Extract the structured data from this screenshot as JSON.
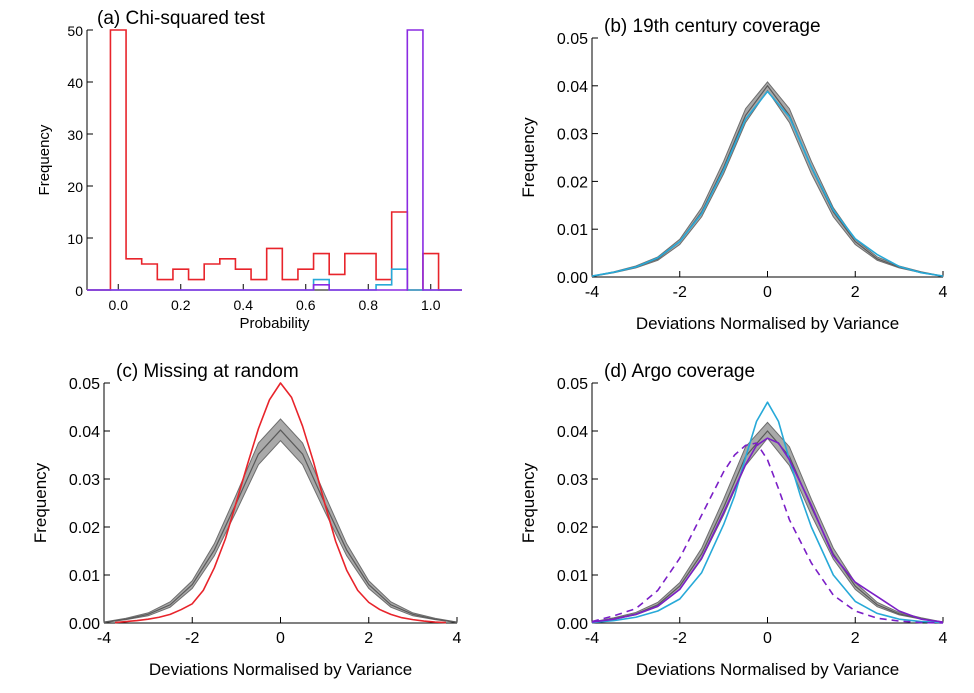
{
  "chart_data": [
    {
      "id": "a",
      "type": "histogram",
      "title": "(a) Chi-squared test",
      "xlabel": "Probability",
      "ylabel": "Frequency",
      "xlim": [
        -0.1,
        1.1
      ],
      "ylim": [
        0,
        50
      ],
      "xticks": [
        "0.0",
        "0.2",
        "0.4",
        "0.6",
        "0.8",
        "1.0"
      ],
      "yticks": [
        "0",
        "10",
        "20",
        "30",
        "40",
        "50"
      ],
      "bin_edges": [
        -0.025,
        0.025,
        0.075,
        0.125,
        0.175,
        0.225,
        0.275,
        0.325,
        0.375,
        0.425,
        0.475,
        0.525,
        0.575,
        0.625,
        0.675,
        0.725,
        0.775,
        0.825,
        0.875,
        0.925,
        0.975,
        1.025
      ],
      "series": [
        {
          "color": "#e8242b",
          "values": [
            50,
            6,
            5,
            2,
            4,
            2,
            5,
            6,
            4,
            2,
            8,
            2,
            4,
            7,
            3,
            7,
            7,
            2,
            15,
            0,
            7
          ]
        },
        {
          "color": "#27a9d8",
          "values": [
            0,
            0,
            0,
            0,
            0,
            0,
            0,
            0,
            0,
            0,
            0,
            0,
            0,
            2,
            0,
            0,
            0,
            1,
            4,
            0,
            0
          ]
        },
        {
          "color": "#8a2be2",
          "values": [
            0,
            0,
            0,
            0,
            0,
            0,
            0,
            0,
            0,
            0,
            0,
            0,
            0,
            1,
            0,
            0,
            0,
            0,
            0,
            50,
            0
          ]
        }
      ]
    },
    {
      "id": "b",
      "type": "line",
      "title": "(b) 19th century coverage",
      "xlabel": "Deviations Normalised by Variance",
      "ylabel": "Frequency",
      "xlim": [
        -4,
        4
      ],
      "ylim": [
        0,
        0.05
      ],
      "xticks": [
        "-4",
        "-2",
        "0",
        "2",
        "4"
      ],
      "yticks": [
        "0.00",
        "0.01",
        "0.02",
        "0.03",
        "0.04",
        "0.05"
      ],
      "band": {
        "color": "#808080",
        "x": [
          -4,
          -3.5,
          -3,
          -2.5,
          -2,
          -1.5,
          -1,
          -0.5,
          0,
          0.5,
          1,
          1.5,
          2,
          2.5,
          3,
          3.5,
          4
        ],
        "lower": [
          0.0001,
          0.0009,
          0.0019,
          0.0035,
          0.0068,
          0.0126,
          0.0216,
          0.0323,
          0.039,
          0.0323,
          0.0216,
          0.0126,
          0.0068,
          0.0035,
          0.0019,
          0.0009,
          0.0001
        ],
        "upper": [
          0.0002,
          0.0011,
          0.0023,
          0.0042,
          0.0079,
          0.0145,
          0.0242,
          0.0352,
          0.0408,
          0.0352,
          0.0242,
          0.0145,
          0.0079,
          0.0042,
          0.0023,
          0.0011,
          0.0002
        ],
        "center": [
          0.00015,
          0.001,
          0.0021,
          0.0038,
          0.0074,
          0.0136,
          0.0229,
          0.0338,
          0.04,
          0.0338,
          0.0229,
          0.0136,
          0.0074,
          0.0038,
          0.0021,
          0.001,
          0.00015
        ]
      },
      "series": [
        {
          "color": "#27a9d8",
          "dash": false,
          "x": [
            -4,
            -3.5,
            -3,
            -2.5,
            -2,
            -1.5,
            -1,
            -0.5,
            0,
            0.5,
            1,
            1.5,
            2,
            2.5,
            3,
            3.5,
            4
          ],
          "y": [
            0.0002,
            0.001,
            0.0021,
            0.004,
            0.0074,
            0.0133,
            0.0224,
            0.033,
            0.0388,
            0.0335,
            0.023,
            0.014,
            0.008,
            0.0047,
            0.0022,
            0.0009,
            0.0002
          ]
        }
      ]
    },
    {
      "id": "c",
      "type": "line",
      "title": "(c) Missing at random",
      "xlabel": "Deviations Normalised by Variance",
      "ylabel": "Frequency",
      "xlim": [
        -4,
        4
      ],
      "ylim": [
        0,
        0.05
      ],
      "xticks": [
        "-4",
        "-2",
        "0",
        "2",
        "4"
      ],
      "yticks": [
        "0.00",
        "0.01",
        "0.02",
        "0.03",
        "0.04",
        "0.05"
      ],
      "band": {
        "color": "#808080",
        "x": [
          -4,
          -3.5,
          -3,
          -2.5,
          -2,
          -1.5,
          -1,
          -0.5,
          0,
          0.5,
          1,
          1.5,
          2,
          2.5,
          3,
          3.5,
          4
        ],
        "lower": [
          0.0001,
          0.0007,
          0.0015,
          0.0033,
          0.0072,
          0.014,
          0.0233,
          0.033,
          0.038,
          0.033,
          0.0233,
          0.014,
          0.0072,
          0.0033,
          0.0015,
          0.0007,
          0.0001
        ],
        "upper": [
          0.0002,
          0.001,
          0.0021,
          0.0044,
          0.0088,
          0.0165,
          0.0268,
          0.0375,
          0.0425,
          0.0375,
          0.0268,
          0.0165,
          0.0088,
          0.0044,
          0.0021,
          0.001,
          0.0002
        ],
        "center": [
          0.00015,
          0.0008,
          0.0018,
          0.0038,
          0.008,
          0.0152,
          0.025,
          0.0352,
          0.0402,
          0.0352,
          0.025,
          0.0152,
          0.008,
          0.0038,
          0.0018,
          0.0008,
          0.00015
        ]
      },
      "series": [
        {
          "color": "#e8242b",
          "dash": false,
          "x": [
            -3.75,
            -3.5,
            -3.25,
            -3,
            -2.75,
            -2.5,
            -2.25,
            -2,
            -1.75,
            -1.5,
            -1.25,
            -1,
            -0.75,
            -0.5,
            -0.25,
            0,
            0.25,
            0.5,
            0.75,
            1,
            1.25,
            1.5,
            1.75,
            2,
            2.25,
            2.5,
            2.75,
            3,
            3.25,
            3.5,
            3.75
          ],
          "y": [
            0.0001,
            0.0003,
            0.0005,
            0.0008,
            0.0012,
            0.0018,
            0.0028,
            0.004,
            0.0068,
            0.0115,
            0.0175,
            0.0252,
            0.033,
            0.0405,
            0.0465,
            0.05,
            0.047,
            0.041,
            0.0335,
            0.025,
            0.017,
            0.011,
            0.0068,
            0.0043,
            0.0028,
            0.0018,
            0.0011,
            0.0007,
            0.0004,
            0.0002,
            0.0001
          ]
        }
      ]
    },
    {
      "id": "d",
      "type": "line",
      "title": "(d) Argo coverage",
      "xlabel": "Deviations Normalised by Variance",
      "ylabel": "Frequency",
      "xlim": [
        -4,
        4
      ],
      "ylim": [
        0,
        0.05
      ],
      "xticks": [
        "-4",
        "-2",
        "0",
        "2",
        "4"
      ],
      "yticks": [
        "0.00",
        "0.01",
        "0.02",
        "0.03",
        "0.04",
        "0.05"
      ],
      "band": {
        "color": "#808080",
        "x": [
          -4,
          -3.5,
          -3,
          -2.5,
          -2,
          -1.5,
          -1,
          -0.5,
          0,
          0.5,
          1,
          1.5,
          2,
          2.5,
          3,
          3.5,
          4
        ],
        "lower": [
          0.0001,
          0.0008,
          0.0017,
          0.0034,
          0.007,
          0.0133,
          0.0225,
          0.0328,
          0.0385,
          0.0328,
          0.0225,
          0.0133,
          0.007,
          0.0034,
          0.0017,
          0.0008,
          0.0001
        ],
        "upper": [
          0.0002,
          0.0011,
          0.0022,
          0.0043,
          0.0084,
          0.0156,
          0.0258,
          0.0367,
          0.0418,
          0.0367,
          0.0258,
          0.0156,
          0.0084,
          0.0043,
          0.0022,
          0.0011,
          0.0002
        ],
        "center": [
          0.00015,
          0.0009,
          0.0019,
          0.0038,
          0.0077,
          0.0144,
          0.0241,
          0.0347,
          0.04,
          0.0347,
          0.0241,
          0.0144,
          0.0077,
          0.0038,
          0.0019,
          0.0009,
          0.00015
        ]
      },
      "series": [
        {
          "color": "#27a9d8",
          "dash": false,
          "x": [
            -4,
            -3.5,
            -3,
            -2.5,
            -2,
            -1.5,
            -1,
            -0.75,
            -0.5,
            -0.25,
            0,
            0.25,
            0.5,
            0.75,
            1,
            1.5,
            2,
            2.5,
            3,
            3.5,
            4
          ],
          "y": [
            0.0001,
            0.0005,
            0.0012,
            0.0025,
            0.005,
            0.0105,
            0.0205,
            0.0265,
            0.0345,
            0.042,
            0.046,
            0.042,
            0.034,
            0.0265,
            0.02,
            0.01,
            0.0045,
            0.002,
            0.0008,
            0.0003,
            0.0001
          ]
        },
        {
          "color": "#7b1fc7",
          "dash": false,
          "x": [
            -4,
            -3.5,
            -3,
            -2.5,
            -2,
            -1.5,
            -1,
            -0.5,
            -0.25,
            0,
            0.25,
            0.5,
            1,
            1.5,
            2,
            2.25,
            2.5,
            3,
            3.5,
            4
          ],
          "y": [
            0.0002,
            0.0008,
            0.0018,
            0.0035,
            0.007,
            0.0135,
            0.023,
            0.033,
            0.037,
            0.0385,
            0.0375,
            0.034,
            0.0245,
            0.014,
            0.0085,
            0.007,
            0.0055,
            0.0025,
            0.0008,
            0.0002
          ]
        },
        {
          "color": "#7b1fc7",
          "dash": true,
          "x": [
            -4,
            -3.5,
            -3,
            -2.5,
            -2,
            -1.5,
            -1,
            -0.75,
            -0.5,
            -0.25,
            0,
            0.25,
            0.5,
            1,
            1.5,
            2,
            2.5,
            3,
            3.5,
            4
          ],
          "y": [
            0.0003,
            0.0015,
            0.003,
            0.0068,
            0.0135,
            0.0225,
            0.0315,
            0.035,
            0.037,
            0.0375,
            0.034,
            0.028,
            0.0215,
            0.0125,
            0.0058,
            0.0025,
            0.001,
            0.0004,
            0.0001,
            0.0
          ]
        }
      ]
    }
  ]
}
